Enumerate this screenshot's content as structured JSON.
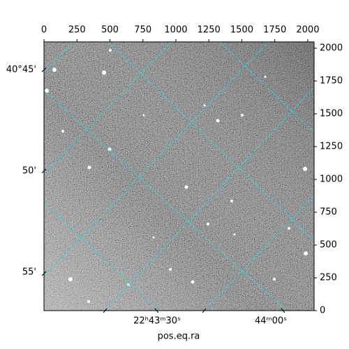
{
  "chart_data": {
    "type": "image",
    "xlabel": "pos.eq.ra",
    "xlim": [
      0,
      2048
    ],
    "ylim": [
      0,
      2048
    ],
    "xticks": [
      0,
      250,
      500,
      750,
      1000,
      1250,
      1500,
      1750,
      2000
    ],
    "yticks": [
      0,
      250,
      500,
      750,
      1000,
      1250,
      1500,
      1750,
      2000
    ],
    "ra_ticks": [
      "22ʰ43ᵐ30ˢ",
      "44ᵐ00ˢ"
    ],
    "dec_ticks": [
      "40°45'",
      "50'",
      "55'"
    ]
  }
}
